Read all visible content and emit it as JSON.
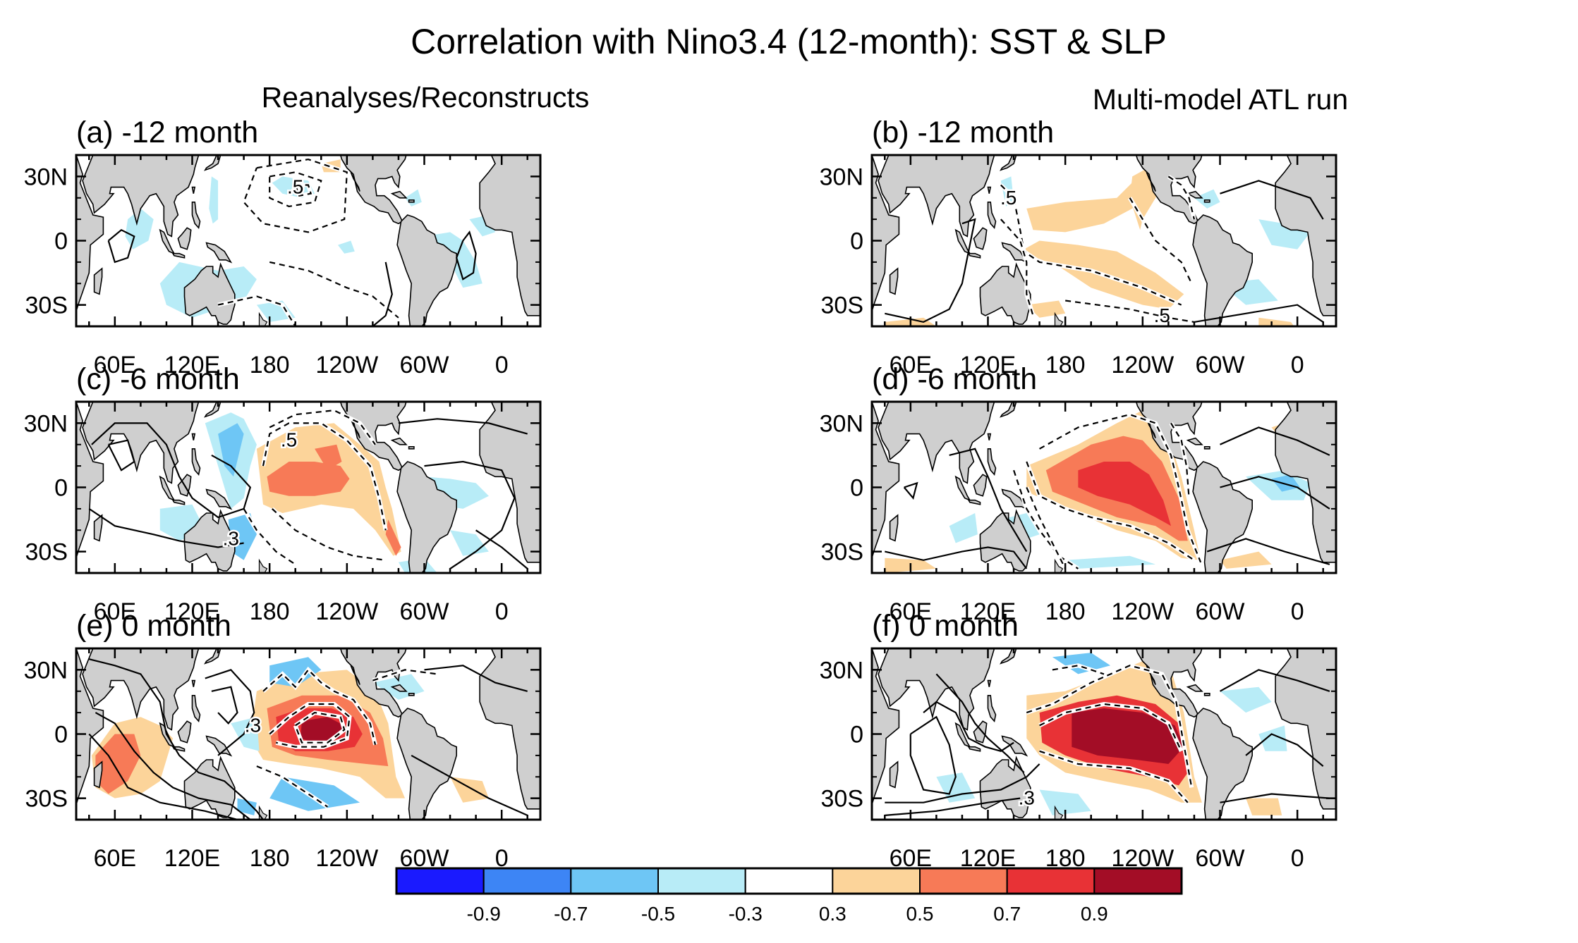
{
  "figure": {
    "title": "Correlation with Nino3.4 (12-month): SST & SLP",
    "column_titles": [
      "Reanalyses/Reconstructs",
      "Multi-model ATL run"
    ]
  },
  "panels": [
    {
      "label": "(a) -12 month"
    },
    {
      "label": "(b) -12 month"
    },
    {
      "label": "(c) -6 month"
    },
    {
      "label": "(d) -6 month"
    },
    {
      "label": "(e) 0 month"
    },
    {
      "label": "(f) 0 month"
    }
  ],
  "axes": {
    "lat_ticks": [
      "30N",
      "0",
      "30S"
    ],
    "lon_ticks": [
      "60E",
      "120E",
      "180",
      "120W",
      "60W",
      "0"
    ]
  },
  "colorbar": {
    "tick_labels": [
      "-0.9",
      "-0.7",
      "-0.5",
      "-0.3",
      "0.3",
      "0.5",
      "0.7",
      "0.9"
    ],
    "colors": [
      "#1a1aff",
      "#3d85f5",
      "#6ec6f5",
      "#b8ecf7",
      "#ffffff",
      "#fcd49a",
      "#f77a57",
      "#e83236",
      "#a30d26"
    ]
  },
  "contour_labels": {
    "a": [
      ".5"
    ],
    "b": [
      ".5",
      ".5"
    ],
    "c": [
      ".5",
      ".3"
    ],
    "e": [
      ".3"
    ],
    "f": [
      ".3"
    ]
  },
  "colors": {
    "land": "#cfcfcf",
    "ocean": "#ffffff",
    "frame": "#000000"
  }
}
